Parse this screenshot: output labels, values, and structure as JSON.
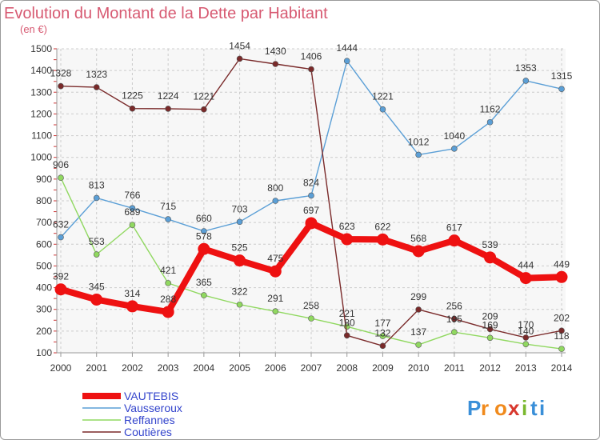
{
  "chart_data": {
    "type": "line",
    "title": "Evolution du Montant de la Dette par Habitant",
    "subtitle": "(en €)",
    "x": [
      "2000",
      "2001",
      "2002",
      "2003",
      "2004",
      "2005",
      "2006",
      "2007",
      "2008",
      "2009",
      "2010",
      "2011",
      "2012",
      "2013",
      "2014"
    ],
    "ylim": [
      100,
      1500
    ],
    "yticks": [
      100,
      200,
      300,
      400,
      500,
      600,
      700,
      800,
      900,
      1000,
      1100,
      1200,
      1300,
      1400,
      1500
    ],
    "grid": true,
    "legend_position": "bottom-left",
    "series": [
      {
        "name": "VAUTEBIS",
        "color": "#ee1111",
        "emphasis": true,
        "values": [
          392,
          345,
          314,
          288,
          578,
          525,
          475,
          697,
          623,
          622,
          568,
          617,
          539,
          444,
          449
        ]
      },
      {
        "name": "Vausseroux",
        "color": "#5b9fd6",
        "values": [
          632,
          813,
          766,
          715,
          660,
          703,
          800,
          824,
          1444,
          1221,
          1012,
          1040,
          1162,
          1353,
          1315
        ]
      },
      {
        "name": "Reffannes",
        "color": "#90d860",
        "values": [
          906,
          553,
          689,
          421,
          365,
          322,
          291,
          258,
          221,
          177,
          137,
          195,
          169,
          140,
          118
        ]
      },
      {
        "name": "Coutières",
        "color": "#7a2a2a",
        "values": [
          1328,
          1323,
          1225,
          1224,
          1221,
          1454,
          1430,
          1406,
          180,
          132,
          299,
          256,
          209,
          170,
          202
        ]
      }
    ]
  },
  "branding": {
    "text": "Proxiti",
    "letters": [
      "P",
      "r",
      "o",
      "x",
      "i",
      "t",
      "i"
    ],
    "letter_colors": [
      "#3a8fd8",
      "#f08a1c",
      "#f08a1c",
      "#d8382e",
      "#7ab82e",
      "#3a8fd8",
      "#3a8fd8"
    ]
  },
  "colors": {
    "title": "#d75a72",
    "grid": "#cccccc",
    "legend_text": "#3344cc"
  }
}
